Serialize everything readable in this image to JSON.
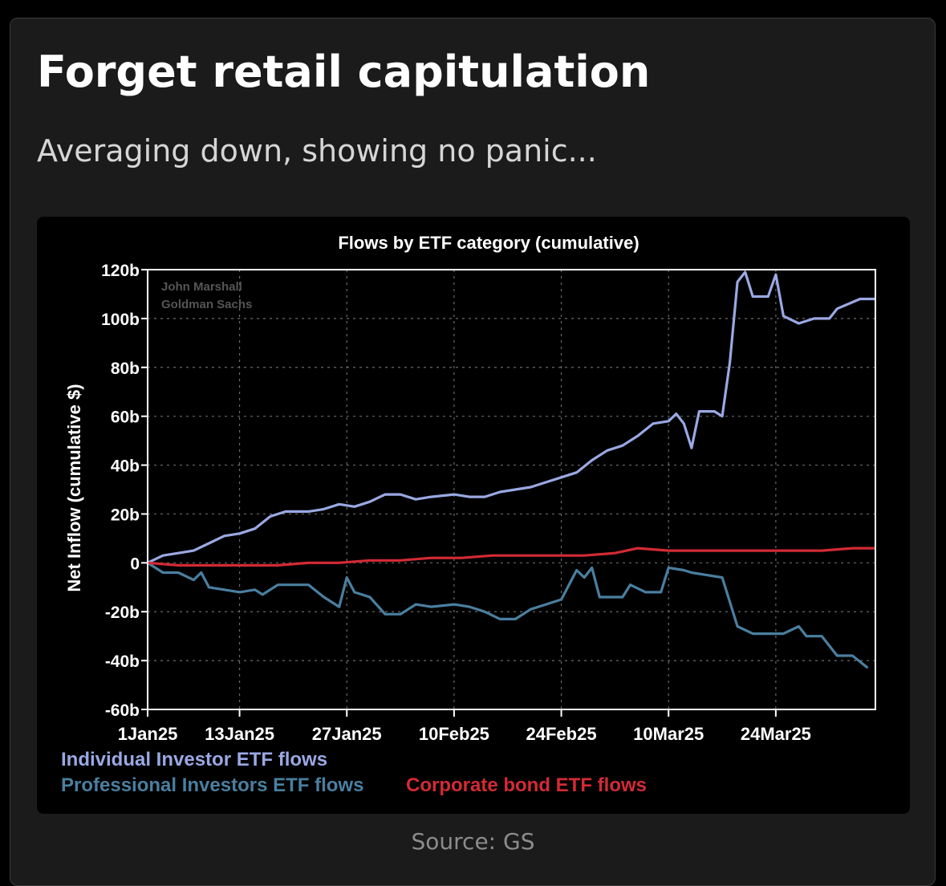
{
  "header": {
    "title": "Forget retail capitulation",
    "subtitle": "Averaging down, showing no panic..."
  },
  "footer": {
    "source": "Source: GS"
  },
  "colors": {
    "background": "#1b1b1b",
    "plot_background": "#000000",
    "individual": "#9aa8e3",
    "professional": "#4a7fa0",
    "corporate": "#d42a35"
  },
  "chart_data": {
    "type": "line",
    "title": "Flows by ETF category (cumulative)",
    "ylabel": "Net Inflow (cumulative $)",
    "xlabel": "",
    "watermark": [
      "John Marshall",
      "Goldman Sachs"
    ],
    "ylim": [
      -60,
      120
    ],
    "yticks": [
      -60,
      -40,
      -20,
      0,
      20,
      40,
      60,
      80,
      100,
      120
    ],
    "ytick_labels": [
      "-60b",
      "-40b",
      "-20b",
      "0",
      "20b",
      "40b",
      "60b",
      "80b",
      "100b",
      "120b"
    ],
    "xlim": [
      "2025-01-01",
      "2025-04-06"
    ],
    "xticks": [
      "2025-01-01",
      "2025-01-13",
      "2025-01-27",
      "2025-02-10",
      "2025-02-24",
      "2025-03-10",
      "2025-03-24"
    ],
    "xtick_labels": [
      "1Jan25",
      "13Jan25",
      "27Jan25",
      "10Feb25",
      "24Feb25",
      "10Mar25",
      "24Mar25"
    ],
    "grid": true,
    "legend_position": "bottom-left",
    "series": [
      {
        "name": "Individual Investor ETF flows",
        "color": "#9aa8e3",
        "points": [
          [
            "2025-01-01",
            0
          ],
          [
            "2025-01-03",
            3
          ],
          [
            "2025-01-05",
            4
          ],
          [
            "2025-01-07",
            5
          ],
          [
            "2025-01-09",
            8
          ],
          [
            "2025-01-11",
            11
          ],
          [
            "2025-01-13",
            12
          ],
          [
            "2025-01-15",
            14
          ],
          [
            "2025-01-17",
            19
          ],
          [
            "2025-01-19",
            21
          ],
          [
            "2025-01-22",
            21
          ],
          [
            "2025-01-24",
            22
          ],
          [
            "2025-01-26",
            24
          ],
          [
            "2025-01-28",
            23
          ],
          [
            "2025-01-30",
            25
          ],
          [
            "2025-02-01",
            28
          ],
          [
            "2025-02-03",
            28
          ],
          [
            "2025-02-05",
            26
          ],
          [
            "2025-02-07",
            27
          ],
          [
            "2025-02-10",
            28
          ],
          [
            "2025-02-12",
            27
          ],
          [
            "2025-02-14",
            27
          ],
          [
            "2025-02-16",
            29
          ],
          [
            "2025-02-18",
            30
          ],
          [
            "2025-02-20",
            31
          ],
          [
            "2025-02-22",
            33
          ],
          [
            "2025-02-24",
            35
          ],
          [
            "2025-02-26",
            37
          ],
          [
            "2025-02-28",
            42
          ],
          [
            "2025-03-02",
            46
          ],
          [
            "2025-03-04",
            48
          ],
          [
            "2025-03-06",
            52
          ],
          [
            "2025-03-08",
            57
          ],
          [
            "2025-03-10",
            58
          ],
          [
            "2025-03-11",
            61
          ],
          [
            "2025-03-12",
            57
          ],
          [
            "2025-03-13",
            47
          ],
          [
            "2025-03-14",
            62
          ],
          [
            "2025-03-16",
            62
          ],
          [
            "2025-03-17",
            60
          ],
          [
            "2025-03-18",
            82
          ],
          [
            "2025-03-19",
            115
          ],
          [
            "2025-03-20",
            119
          ],
          [
            "2025-03-21",
            109
          ],
          [
            "2025-03-23",
            109
          ],
          [
            "2025-03-24",
            118
          ],
          [
            "2025-03-25",
            101
          ],
          [
            "2025-03-27",
            98
          ],
          [
            "2025-03-29",
            100
          ],
          [
            "2025-03-31",
            100
          ],
          [
            "2025-04-01",
            104
          ],
          [
            "2025-04-04",
            108
          ],
          [
            "2025-04-06",
            108
          ]
        ]
      },
      {
        "name": "Professional Investors ETF flows",
        "color": "#4a7fa0",
        "points": [
          [
            "2025-01-01",
            0
          ],
          [
            "2025-01-03",
            -4
          ],
          [
            "2025-01-05",
            -4
          ],
          [
            "2025-01-07",
            -7
          ],
          [
            "2025-01-08",
            -4
          ],
          [
            "2025-01-09",
            -10
          ],
          [
            "2025-01-11",
            -11
          ],
          [
            "2025-01-13",
            -12
          ],
          [
            "2025-01-15",
            -11
          ],
          [
            "2025-01-16",
            -13
          ],
          [
            "2025-01-18",
            -9
          ],
          [
            "2025-01-20",
            -9
          ],
          [
            "2025-01-22",
            -9
          ],
          [
            "2025-01-24",
            -14
          ],
          [
            "2025-01-26",
            -18
          ],
          [
            "2025-01-27",
            -6
          ],
          [
            "2025-01-28",
            -12
          ],
          [
            "2025-01-30",
            -14
          ],
          [
            "2025-02-01",
            -21
          ],
          [
            "2025-02-03",
            -21
          ],
          [
            "2025-02-05",
            -17
          ],
          [
            "2025-02-07",
            -18
          ],
          [
            "2025-02-10",
            -17
          ],
          [
            "2025-02-12",
            -18
          ],
          [
            "2025-02-14",
            -20
          ],
          [
            "2025-02-16",
            -23
          ],
          [
            "2025-02-18",
            -23
          ],
          [
            "2025-02-20",
            -19
          ],
          [
            "2025-02-22",
            -17
          ],
          [
            "2025-02-24",
            -15
          ],
          [
            "2025-02-26",
            -3
          ],
          [
            "2025-02-27",
            -6
          ],
          [
            "2025-02-28",
            -2
          ],
          [
            "2025-03-01",
            -14
          ],
          [
            "2025-03-04",
            -14
          ],
          [
            "2025-03-05",
            -9
          ],
          [
            "2025-03-07",
            -12
          ],
          [
            "2025-03-09",
            -12
          ],
          [
            "2025-03-10",
            -2
          ],
          [
            "2025-03-12",
            -3
          ],
          [
            "2025-03-13",
            -4
          ],
          [
            "2025-03-15",
            -5
          ],
          [
            "2025-03-17",
            -6
          ],
          [
            "2025-03-19",
            -26
          ],
          [
            "2025-03-21",
            -29
          ],
          [
            "2025-03-23",
            -29
          ],
          [
            "2025-03-25",
            -29
          ],
          [
            "2025-03-27",
            -26
          ],
          [
            "2025-03-28",
            -30
          ],
          [
            "2025-03-30",
            -30
          ],
          [
            "2025-04-01",
            -38
          ],
          [
            "2025-04-03",
            -38
          ],
          [
            "2025-04-05",
            -43
          ]
        ]
      },
      {
        "name": "Corporate bond ETF flows",
        "color": "#d42a35",
        "points": [
          [
            "2025-01-01",
            0
          ],
          [
            "2025-01-05",
            -1
          ],
          [
            "2025-01-10",
            -1
          ],
          [
            "2025-01-14",
            -1
          ],
          [
            "2025-01-18",
            -1
          ],
          [
            "2025-01-22",
            0
          ],
          [
            "2025-01-26",
            0
          ],
          [
            "2025-01-30",
            1
          ],
          [
            "2025-02-03",
            1
          ],
          [
            "2025-02-07",
            2
          ],
          [
            "2025-02-11",
            2
          ],
          [
            "2025-02-15",
            3
          ],
          [
            "2025-02-19",
            3
          ],
          [
            "2025-02-23",
            3
          ],
          [
            "2025-02-27",
            3
          ],
          [
            "2025-03-03",
            4
          ],
          [
            "2025-03-06",
            6
          ],
          [
            "2025-03-10",
            5
          ],
          [
            "2025-03-14",
            5
          ],
          [
            "2025-03-17",
            5
          ],
          [
            "2025-03-21",
            5
          ],
          [
            "2025-03-25",
            5
          ],
          [
            "2025-03-30",
            5
          ],
          [
            "2025-04-03",
            6
          ],
          [
            "2025-04-06",
            6
          ]
        ]
      }
    ]
  }
}
